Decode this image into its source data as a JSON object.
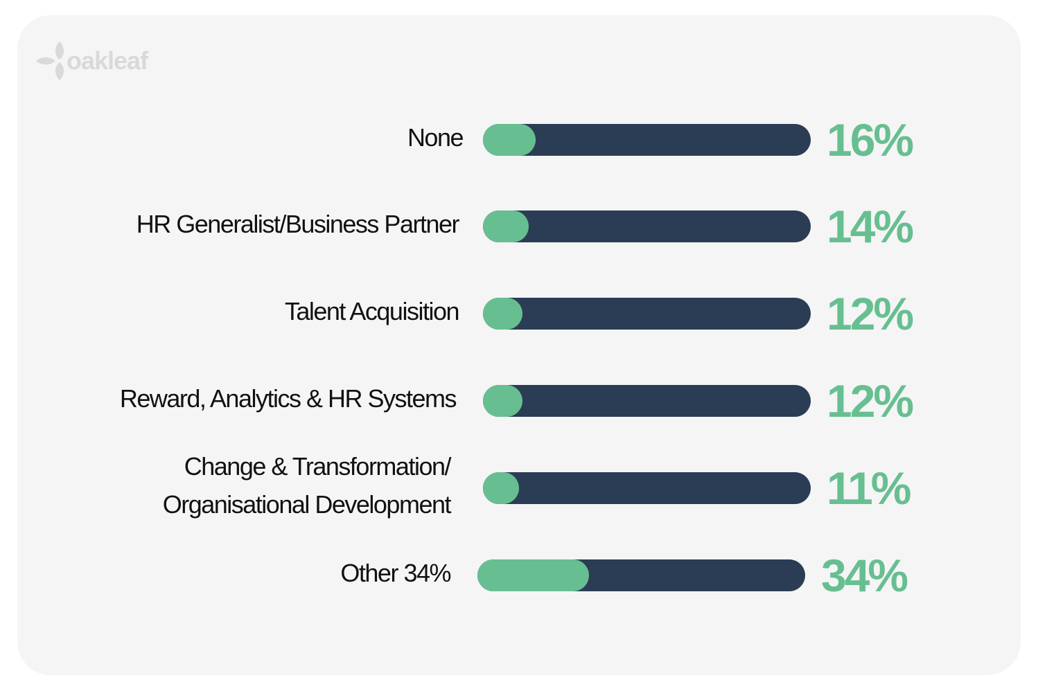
{
  "brand": {
    "logo_text": "oakleaf",
    "logo_color": "#d9d9d9"
  },
  "colors": {
    "background": "#f5f5f5",
    "track": "#2b3d55",
    "fill": "#67bf91",
    "value_text": "#67bf91",
    "label_text": "#111111"
  },
  "chart_data": {
    "type": "bar",
    "orientation": "horizontal",
    "title": "",
    "xlabel": "",
    "ylabel": "",
    "xlim": [
      0,
      100
    ],
    "grid": false,
    "categories": [
      [
        "None"
      ],
      [
        "HR Generalist/Business Partner"
      ],
      [
        "Talent Acquisition"
      ],
      [
        "Reward, Analytics & HR Systems"
      ],
      [
        "Change & Transformation/",
        "Organisational Development"
      ],
      [
        "Other 34%"
      ]
    ],
    "values": [
      16,
      14,
      12,
      12,
      11,
      34
    ],
    "value_labels": [
      "16%",
      "14%",
      "12%",
      "12%",
      "11%",
      "34%"
    ]
  }
}
